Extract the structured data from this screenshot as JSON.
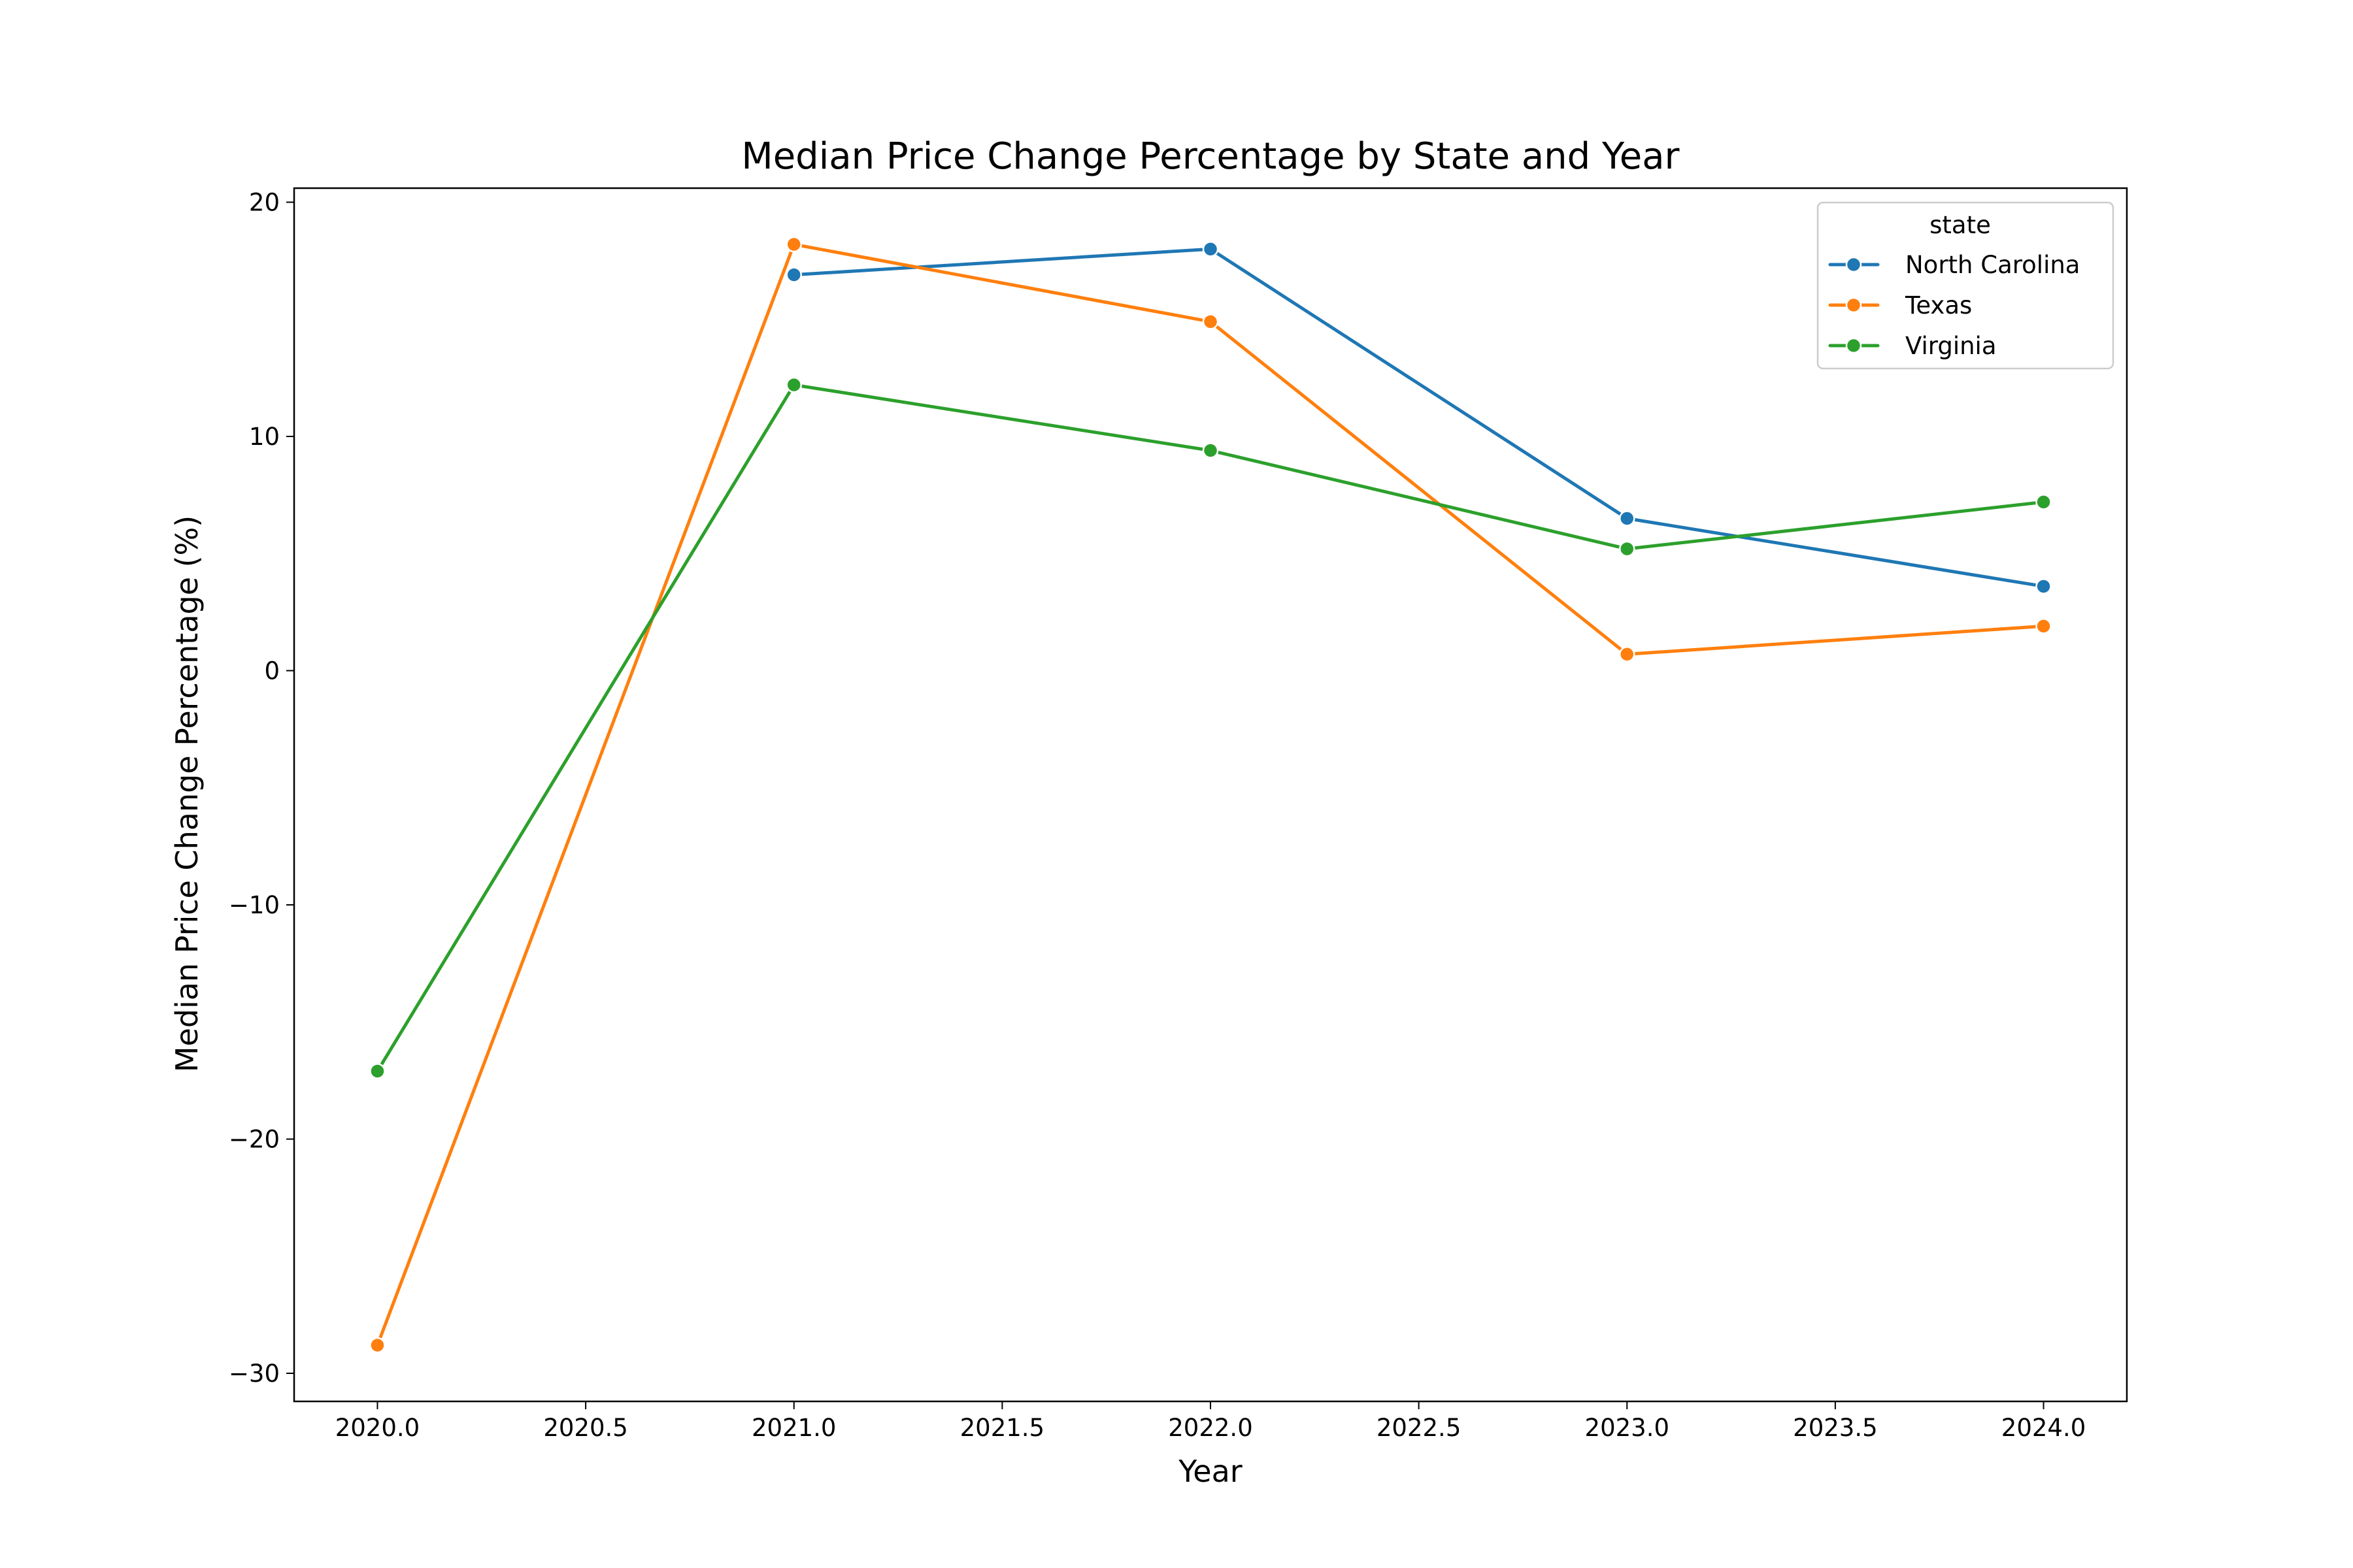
{
  "chart_data": {
    "type": "line",
    "title": "Median Price Change Percentage by State and Year",
    "xlabel": "Year",
    "ylabel": "Median Price Change Percentage (%)",
    "xlim": [
      2019.8,
      2024.2
    ],
    "ylim": [
      -31.2,
      20.6
    ],
    "x_ticks": [
      2020.0,
      2020.5,
      2021.0,
      2021.5,
      2022.0,
      2022.5,
      2023.0,
      2023.5,
      2024.0
    ],
    "x_tick_labels": [
      "2020.0",
      "2020.5",
      "2021.0",
      "2021.5",
      "2022.0",
      "2022.5",
      "2023.0",
      "2023.5",
      "2024.0"
    ],
    "y_ticks": [
      20,
      10,
      0,
      -10,
      -20,
      -30
    ],
    "y_tick_labels": [
      "20",
      "10",
      "0",
      "−10",
      "−20",
      "−30"
    ],
    "grid": false,
    "legend": {
      "title": "state",
      "placement": "top-right"
    },
    "series": [
      {
        "name": "North Carolina",
        "color": "#1f77b4",
        "x": [
          2021,
          2022,
          2023,
          2024
        ],
        "values": [
          16.9,
          18.0,
          6.5,
          3.6
        ]
      },
      {
        "name": "Texas",
        "color": "#ff7f0e",
        "x": [
          2020,
          2021,
          2022,
          2023,
          2024
        ],
        "values": [
          -28.8,
          18.2,
          14.9,
          0.7,
          1.9
        ]
      },
      {
        "name": "Virginia",
        "color": "#2ca02c",
        "x": [
          2020,
          2021,
          2022,
          2023,
          2024
        ],
        "values": [
          -17.1,
          12.2,
          9.4,
          5.2,
          7.2
        ]
      }
    ]
  }
}
